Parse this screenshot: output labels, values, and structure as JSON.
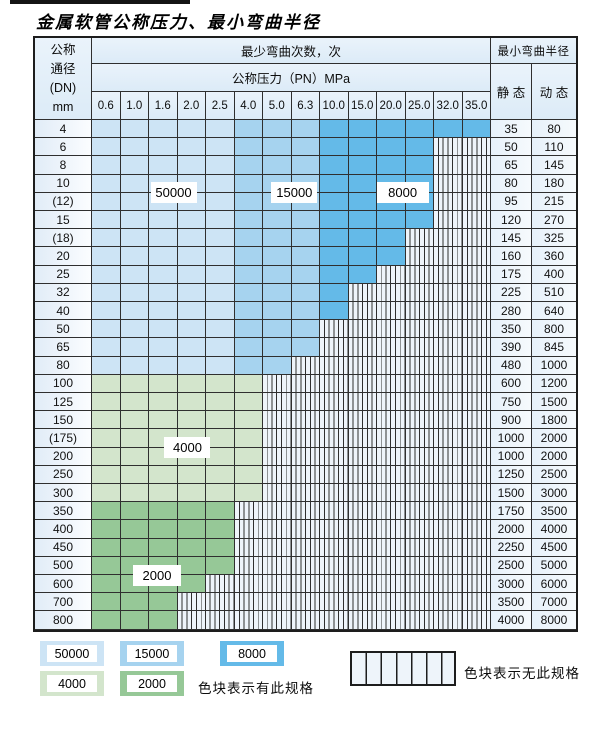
{
  "title": "金属软管公称压力、最小弯曲半径",
  "table": {
    "header": {
      "dn_lines": [
        "公称",
        "通径",
        "(DN)",
        "mm"
      ],
      "bend_cycles_label": "最少弯曲次数，次",
      "pressure_label": "公称压力（PN）MPa",
      "pressure_cols": [
        "0.6",
        "1.0",
        "1.6",
        "2.0",
        "2.5",
        "4.0",
        "5.0",
        "6.3",
        "10.0",
        "15.0",
        "20.0",
        "25.0",
        "32.0",
        "35.0"
      ],
      "min_bend_radius_label": "最小弯曲半径",
      "static_label": "静 态",
      "dynamic_label": "动 态"
    },
    "rows": [
      {
        "dn": "4",
        "static": "35",
        "dynamic": "80",
        "colored_cols": 14,
        "palette": "blue"
      },
      {
        "dn": "6",
        "static": "50",
        "dynamic": "110",
        "colored_cols": 12,
        "palette": "blue"
      },
      {
        "dn": "8",
        "static": "65",
        "dynamic": "145",
        "colored_cols": 12,
        "palette": "blue"
      },
      {
        "dn": "10",
        "static": "80",
        "dynamic": "180",
        "colored_cols": 12,
        "palette": "blue"
      },
      {
        "dn": "(12)",
        "static": "95",
        "dynamic": "215",
        "colored_cols": 12,
        "palette": "blue"
      },
      {
        "dn": "15",
        "static": "120",
        "dynamic": "270",
        "colored_cols": 12,
        "palette": "blue"
      },
      {
        "dn": "(18)",
        "static": "145",
        "dynamic": "325",
        "colored_cols": 11,
        "palette": "blue"
      },
      {
        "dn": "20",
        "static": "160",
        "dynamic": "360",
        "colored_cols": 11,
        "palette": "blue"
      },
      {
        "dn": "25",
        "static": "175",
        "dynamic": "400",
        "colored_cols": 10,
        "palette": "blue"
      },
      {
        "dn": "32",
        "static": "225",
        "dynamic": "510",
        "colored_cols": 9,
        "palette": "blue"
      },
      {
        "dn": "40",
        "static": "280",
        "dynamic": "640",
        "colored_cols": 9,
        "palette": "blue"
      },
      {
        "dn": "50",
        "static": "350",
        "dynamic": "800",
        "colored_cols": 8,
        "palette": "blue"
      },
      {
        "dn": "65",
        "static": "390",
        "dynamic": "845",
        "colored_cols": 8,
        "palette": "blue"
      },
      {
        "dn": "80",
        "static": "480",
        "dynamic": "1000",
        "colored_cols": 7,
        "palette": "blue"
      },
      {
        "dn": "100",
        "static": "600",
        "dynamic": "1200",
        "colored_cols": 6,
        "palette": "green4000"
      },
      {
        "dn": "125",
        "static": "750",
        "dynamic": "1500",
        "colored_cols": 6,
        "palette": "green4000"
      },
      {
        "dn": "150",
        "static": "900",
        "dynamic": "1800",
        "colored_cols": 6,
        "palette": "green4000"
      },
      {
        "dn": "(175)",
        "static": "1000",
        "dynamic": "2000",
        "colored_cols": 6,
        "palette": "green4000"
      },
      {
        "dn": "200",
        "static": "1000",
        "dynamic": "2000",
        "colored_cols": 6,
        "palette": "green4000"
      },
      {
        "dn": "250",
        "static": "1250",
        "dynamic": "2500",
        "colored_cols": 6,
        "palette": "green4000"
      },
      {
        "dn": "300",
        "static": "1500",
        "dynamic": "3000",
        "colored_cols": 6,
        "palette": "green4000"
      },
      {
        "dn": "350",
        "static": "1750",
        "dynamic": "3500",
        "colored_cols": 5,
        "palette": "green2000"
      },
      {
        "dn": "400",
        "static": "2000",
        "dynamic": "4000",
        "colored_cols": 5,
        "palette": "green2000"
      },
      {
        "dn": "450",
        "static": "2250",
        "dynamic": "4500",
        "colored_cols": 5,
        "palette": "green2000"
      },
      {
        "dn": "500",
        "static": "2500",
        "dynamic": "5000",
        "colored_cols": 5,
        "palette": "green2000"
      },
      {
        "dn": "600",
        "static": "3000",
        "dynamic": "6000",
        "colored_cols": 4,
        "palette": "green2000"
      },
      {
        "dn": "700",
        "static": "3500",
        "dynamic": "7000",
        "colored_cols": 3,
        "palette": "green2000"
      },
      {
        "dn": "800",
        "static": "4000",
        "dynamic": "8000",
        "colored_cols": 3,
        "palette": "green2000"
      }
    ]
  },
  "zone_labels": [
    "50000",
    "15000",
    "8000",
    "4000",
    "2000"
  ],
  "legend": {
    "blocks": [
      {
        "label": "50000",
        "color": "c50000"
      },
      {
        "label": "15000",
        "color": "c15000"
      },
      {
        "label": "8000",
        "color": "c8000"
      },
      {
        "label": "4000",
        "color": "c4000"
      },
      {
        "label": "2000",
        "color": "c2000"
      }
    ],
    "has_spec_text": "色块表示有此规格",
    "no_spec_text": "色块表示无此规格"
  },
  "colors": {
    "c50000": "#cde4f5",
    "c15000": "#a6d3ef",
    "c8000": "#64bae8",
    "c4000": "#d3e5cc",
    "c2000": "#96c897",
    "stripe_bg": "#eef4fa",
    "grid": "#2f2f2f"
  }
}
